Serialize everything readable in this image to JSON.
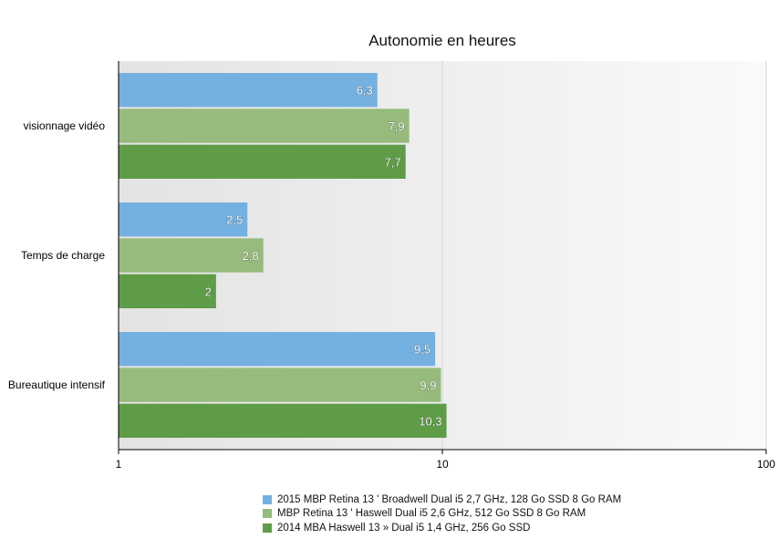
{
  "chart_data": {
    "type": "bar",
    "orientation": "horizontal",
    "title": "Autonomie en heures",
    "x_scale": "log",
    "xlim": [
      1,
      100
    ],
    "x_ticks": [
      "1",
      "10",
      "100"
    ],
    "grid": true,
    "legend_position": "bottom",
    "categories": [
      "visionnage vidéo",
      "Temps de charge",
      "Bureautique intensif"
    ],
    "series": [
      {
        "name": "2015 MBP Retina 13 ' Broadwell Dual i5 2,7 GHz, 128 Go SSD 8 Go RAM",
        "color": "#74b1e0",
        "values": [
          6.3,
          2.5,
          9.5
        ],
        "labels": [
          "6,3",
          "2,5",
          "9,5"
        ]
      },
      {
        "name": "MBP Retina 13 ' Haswell Dual i5 2,6 GHz, 512 Go SSD 8 Go RAM",
        "color": "#96bb7c",
        "values": [
          7.9,
          2.8,
          9.9
        ],
        "labels": [
          "7,9",
          "2,8",
          "9,9"
        ]
      },
      {
        "name": "2014 MBA Haswell 13 » Dual i5 1,4 GHz, 256 Go SSD",
        "color": "#5f9c47",
        "values": [
          7.7,
          2,
          10.3
        ],
        "labels": [
          "7,7",
          "2",
          "10,3"
        ]
      }
    ]
  }
}
